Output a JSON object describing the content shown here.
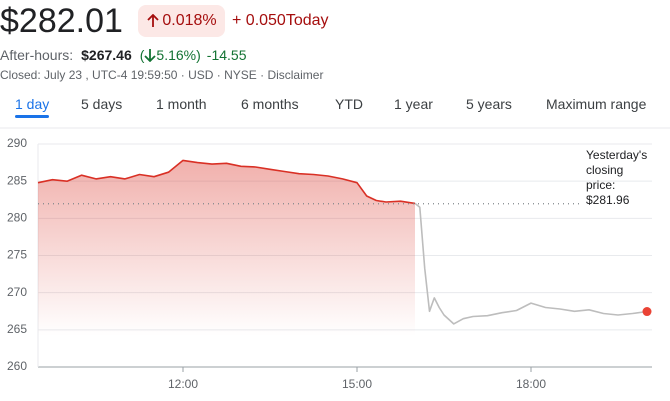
{
  "header": {
    "price": "$282.01",
    "change_percent": "0.018%",
    "change": "+ 0.050",
    "change_period": "Today",
    "after_hours_label": "After-hours:",
    "after_hours_price": "$267.46",
    "paren_open": "(",
    "after_hours_percent": "5.16%",
    "paren_close": ")",
    "after_hours_change": "-14.55",
    "status": "Closed: July 23 , UTC-4 19:59:50 · USD · NYSE · ",
    "disclaimer": "Disclaimer"
  },
  "tabs": {
    "items": [
      "1 day",
      "5 days",
      "1 month",
      "6 months",
      "YTD",
      "1 year",
      "5 years",
      "Maximum range"
    ],
    "selected": 0
  },
  "chart_data": {
    "type": "line",
    "xlim": [
      "09:30",
      "20:00"
    ],
    "xticks": [
      "12:00",
      "15:00",
      "18:00"
    ],
    "ylim": [
      260,
      290
    ],
    "yticks": [
      260,
      265,
      270,
      275,
      280,
      285,
      290
    ],
    "grid": true,
    "reference": 281.96,
    "reference_label": "Yesterday's closing price:",
    "reference_value_label": "$281.96",
    "series": [
      {
        "color": "#d93025",
        "area": true,
        "x": [
          "09:30",
          "09:45",
          "10:00",
          "10:15",
          "10:30",
          "10:45",
          "11:00",
          "11:15",
          "11:30",
          "11:45",
          "12:00",
          "12:15",
          "12:30",
          "12:45",
          "13:00",
          "13:15",
          "13:30",
          "13:45",
          "14:00",
          "14:15",
          "14:30",
          "14:45",
          "15:00",
          "15:10",
          "15:20",
          "15:30",
          "15:45",
          "16:00"
        ],
        "values": [
          284.8,
          285.2,
          285.0,
          285.8,
          285.3,
          285.6,
          285.3,
          285.9,
          285.6,
          286.2,
          287.8,
          287.5,
          287.3,
          287.4,
          287.0,
          286.9,
          286.6,
          286.3,
          286.0,
          285.9,
          285.7,
          285.3,
          284.8,
          283.0,
          282.4,
          282.2,
          282.3,
          282.01
        ]
      },
      {
        "color": "#bdbdbd",
        "area": false,
        "x": [
          "16:00",
          "16:05",
          "16:10",
          "16:15",
          "16:20",
          "16:25",
          "16:30",
          "16:40",
          "16:50",
          "17:00",
          "17:15",
          "17:30",
          "17:45",
          "18:00",
          "18:15",
          "18:30",
          "18:45",
          "19:00",
          "19:15",
          "19:30",
          "19:45",
          "20:00"
        ],
        "values": [
          282.01,
          281.5,
          273.3,
          267.5,
          269.3,
          268.0,
          267.0,
          265.8,
          266.5,
          266.8,
          266.9,
          267.3,
          267.6,
          268.6,
          268.0,
          267.8,
          267.5,
          267.7,
          267.2,
          267.0,
          267.2,
          267.46
        ]
      }
    ]
  }
}
